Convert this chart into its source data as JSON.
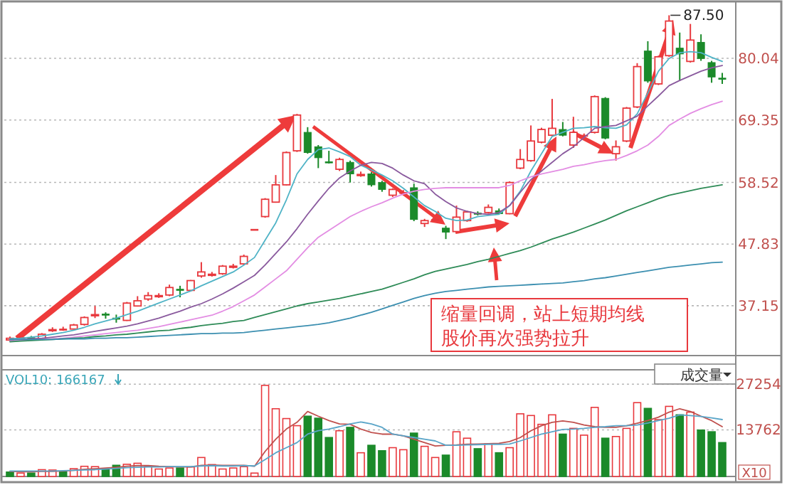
{
  "chart_data": [
    {
      "type": "candlestick",
      "tick_labels": "y",
      "grid": "y",
      "ylim": [
        28.5,
        89.9
      ],
      "yticks": [
        37.15,
        47.83,
        58.52,
        69.35,
        80.04
      ],
      "categories": [
        null,
        null,
        null,
        null,
        null,
        null,
        null,
        null,
        null,
        null,
        null,
        null,
        null,
        null,
        null,
        null,
        null,
        null,
        null,
        null,
        null,
        null,
        null,
        null,
        null,
        null,
        null,
        null,
        null,
        null,
        null,
        null,
        null,
        null,
        null,
        null,
        null,
        null,
        null,
        null,
        null,
        null,
        null,
        null,
        null,
        null,
        null,
        null,
        null,
        null,
        null,
        null,
        null,
        null,
        null,
        null,
        null,
        null,
        null,
        null,
        null,
        null,
        null,
        null,
        null,
        null,
        null,
        null
      ],
      "ohlc": [
        [
          31.2,
          31.8,
          31.0,
          31.5
        ],
        [
          31.3,
          31.8,
          31.1,
          31.6
        ],
        [
          31.6,
          31.9,
          31.2,
          31.4
        ],
        [
          31.4,
          32.4,
          31.3,
          32.2
        ],
        [
          32.9,
          33.4,
          32.6,
          33.0
        ],
        [
          33.1,
          33.5,
          32.8,
          33.1
        ],
        [
          33.1,
          34.0,
          33.0,
          33.8
        ],
        [
          33.9,
          35.3,
          33.7,
          35.1
        ],
        [
          35.5,
          37.1,
          35.0,
          35.6
        ],
        [
          35.7,
          36.0,
          34.9,
          35.6
        ],
        [
          35.0,
          35.6,
          34.2,
          34.8
        ],
        [
          34.6,
          37.8,
          34.5,
          37.6
        ],
        [
          37.1,
          38.8,
          37.0,
          38.0
        ],
        [
          38.3,
          39.5,
          38.0,
          38.9
        ],
        [
          38.8,
          39.3,
          38.5,
          38.9
        ],
        [
          39.0,
          40.8,
          38.8,
          40.3
        ],
        [
          40.0,
          40.6,
          38.6,
          39.9
        ],
        [
          39.8,
          41.6,
          39.6,
          41.5
        ],
        [
          42.3,
          44.7,
          42.0,
          43.0
        ],
        [
          42.5,
          43.0,
          42.2,
          42.6
        ],
        [
          42.7,
          44.2,
          42.5,
          44.0
        ],
        [
          43.9,
          44.4,
          43.6,
          44.0
        ],
        [
          44.4,
          46.0,
          44.2,
          45.7
        ],
        [
          50.4,
          50.4,
          50.4,
          50.4
        ],
        [
          52.6,
          55.8,
          52.4,
          55.6
        ],
        [
          55.1,
          59.8,
          55.0,
          58.1
        ],
        [
          58.1,
          63.9,
          58.0,
          63.7
        ],
        [
          64.0,
          70.4,
          63.8,
          70.2
        ],
        [
          67.2,
          68.1,
          63.5,
          63.7
        ],
        [
          64.7,
          65.0,
          61.0,
          62.8
        ],
        [
          62.1,
          64.0,
          61.8,
          62.0
        ],
        [
          60.8,
          62.8,
          60.5,
          62.5
        ],
        [
          62.0,
          62.3,
          58.5,
          60.0
        ],
        [
          59.8,
          60.4,
          59.5,
          59.9
        ],
        [
          60.0,
          60.3,
          57.8,
          58.1
        ],
        [
          58.5,
          58.8,
          56.9,
          57.3
        ],
        [
          56.3,
          57.5,
          56.0,
          57.3
        ],
        [
          56.8,
          57.2,
          56.3,
          56.8
        ],
        [
          57.6,
          58.3,
          51.8,
          52.1
        ],
        [
          51.4,
          52.2,
          50.8,
          51.9
        ],
        [
          52.1,
          52.4,
          51.8,
          52.1
        ],
        [
          50.6,
          51.0,
          48.7,
          49.9
        ],
        [
          50.0,
          54.5,
          49.8,
          52.5
        ],
        [
          51.9,
          53.6,
          51.7,
          53.4
        ],
        [
          53.2,
          53.5,
          52.8,
          53.1
        ],
        [
          53.3,
          54.7,
          53.1,
          54.2
        ],
        [
          53.6,
          54.0,
          53.0,
          53.1
        ],
        [
          53.1,
          58.7,
          53.0,
          58.5
        ],
        [
          61.0,
          64.3,
          60.8,
          62.5
        ],
        [
          62.3,
          68.4,
          62.1,
          65.7
        ],
        [
          65.5,
          68.0,
          65.3,
          67.7
        ],
        [
          66.7,
          73.0,
          66.5,
          67.9
        ],
        [
          67.7,
          69.0,
          66.5,
          66.7
        ],
        [
          65.0,
          69.9,
          64.5,
          67.2
        ],
        [
          66.7,
          67.0,
          66.3,
          66.7
        ],
        [
          67.2,
          73.6,
          67.0,
          73.4
        ],
        [
          73.1,
          73.3,
          66.0,
          66.2
        ],
        [
          63.5,
          65.8,
          62.3,
          64.7
        ],
        [
          65.7,
          71.6,
          65.5,
          71.4
        ],
        [
          71.6,
          79.2,
          71.4,
          78.6
        ],
        [
          81.3,
          83.0,
          75.8,
          76.1
        ],
        [
          75.6,
          80.5,
          75.4,
          80.3
        ],
        [
          80.5,
          87.5,
          80.3,
          86.5
        ],
        [
          81.8,
          84.5,
          76.1,
          80.8
        ],
        [
          79.5,
          86.0,
          79.3,
          83.2
        ],
        [
          82.8,
          84.2,
          79.6,
          80.0
        ],
        [
          79.3,
          79.6,
          75.8,
          76.8
        ],
        [
          76.6,
          77.5,
          75.6,
          76.6
        ]
      ],
      "colors": [
        "#e8383d",
        "#e8383d",
        "#1b8a2a",
        "#e8383d",
        "#e8383d",
        "#e8383d",
        "#e8383d",
        "#e8383d",
        "#e8383d",
        "#1b8a2a",
        "#1b8a2a",
        "#e8383d",
        "#e8383d",
        "#e8383d",
        "#e8383d",
        "#e8383d",
        "#1b8a2a",
        "#e8383d",
        "#e8383d",
        "#e8383d",
        "#e8383d",
        "#e8383d",
        "#e8383d",
        "#e8383d",
        "#e8383d",
        "#e8383d",
        "#e8383d",
        "#e8383d",
        "#1b8a2a",
        "#1b8a2a",
        "#1b8a2a",
        "#e8383d",
        "#1b8a2a",
        "#e8383d",
        "#1b8a2a",
        "#1b8a2a",
        "#e8383d",
        "#e8383d",
        "#1b8a2a",
        "#e8383d",
        "#e8383d",
        "#1b8a2a",
        "#e8383d",
        "#e8383d",
        "#1b8a2a",
        "#e8383d",
        "#1b8a2a",
        "#e8383d",
        "#e8383d",
        "#e8383d",
        "#e8383d",
        "#e8383d",
        "#1b8a2a",
        "#e8383d",
        "#e8383d",
        "#e8383d",
        "#1b8a2a",
        "#e8383d",
        "#e8383d",
        "#e8383d",
        "#1b8a2a",
        "#e8383d",
        "#e8383d",
        "#1b8a2a",
        "#e8383d",
        "#1b8a2a",
        "#1b8a2a",
        "#1b8a2a"
      ],
      "series": [
        {
          "type": "line",
          "color": "#4fb3c6",
          "values": [
            31.4,
            31.5,
            31.7,
            31.9,
            32.2,
            32.5,
            32.9,
            33.4,
            34.0,
            34.5,
            35.0,
            35.6,
            36.2,
            36.9,
            37.6,
            38.3,
            39.0,
            39.7,
            40.6,
            41.4,
            42.2,
            43.0,
            44.2,
            45.5,
            48.5,
            51.5,
            55.5,
            60.0,
            62.5,
            64.2,
            64.5,
            63.8,
            63.0,
            61.5,
            60.7,
            59.8,
            58.8,
            57.5,
            56.0,
            54.5,
            53.5,
            52.3,
            51.9,
            52.0,
            52.6,
            52.8,
            53.0,
            54.5,
            57.0,
            60.5,
            63.5,
            66.5,
            67.2,
            67.9,
            68.0,
            68.2,
            68.0,
            67.9,
            68.5,
            70.4,
            74.0,
            77.8,
            80.0,
            81.0,
            81.2,
            81.0,
            80.2,
            79.5
          ]
        },
        {
          "type": "line",
          "color": "#8a5a9e",
          "values": [
            31.2,
            31.3,
            31.4,
            31.5,
            31.7,
            31.9,
            32.1,
            32.4,
            32.7,
            33.0,
            33.3,
            33.6,
            34.0,
            34.5,
            35.0,
            35.6,
            36.2,
            36.9,
            37.5,
            38.3,
            39.2,
            40.2,
            41.3,
            42.4,
            44.2,
            46.2,
            48.2,
            50.5,
            53.0,
            55.3,
            57.5,
            59.3,
            60.5,
            61.5,
            62.0,
            61.8,
            61.0,
            59.8,
            58.8,
            58.3,
            56.5,
            55.2,
            54.1,
            53.5,
            53.1,
            53.0,
            53.3,
            54.5,
            56.8,
            59.0,
            60.5,
            62.0,
            63.5,
            64.7,
            66.3,
            67.9,
            68.2,
            68.4,
            69.2,
            70.0,
            71.8,
            73.5,
            75.3,
            76.2,
            77.0,
            77.8,
            78.4,
            78.8
          ]
        },
        {
          "type": "line",
          "color": "#e38de3",
          "values": [
            31.0,
            31.1,
            31.2,
            31.3,
            31.4,
            31.5,
            31.7,
            31.9,
            32.1,
            32.3,
            32.5,
            32.7,
            32.9,
            33.2,
            33.5,
            33.9,
            34.3,
            34.7,
            35.1,
            35.5,
            36.2,
            37.0,
            38.0,
            39.0,
            40.4,
            41.8,
            43.2,
            45.2,
            47.2,
            49.0,
            50.2,
            51.4,
            52.6,
            53.5,
            54.3,
            55.0,
            55.8,
            56.5,
            57.0,
            57.3,
            57.5,
            57.6,
            57.6,
            57.6,
            57.6,
            57.6,
            57.6,
            58.0,
            58.8,
            59.5,
            60.0,
            60.4,
            60.8,
            61.3,
            61.6,
            62.0,
            62.3,
            62.5,
            63.2,
            64.0,
            65.0,
            66.5,
            68.4,
            69.5,
            70.5,
            71.3,
            72.0,
            72.6
          ]
        },
        {
          "type": "line",
          "color": "#2e8b57",
          "values": [
            30.9,
            31.0,
            31.1,
            31.2,
            31.3,
            31.4,
            31.5,
            31.6,
            31.8,
            31.9,
            32.1,
            32.2,
            32.4,
            32.6,
            32.8,
            32.9,
            33.2,
            33.4,
            33.7,
            33.9,
            34.1,
            34.4,
            34.6,
            35.1,
            35.6,
            36.1,
            36.6,
            37.1,
            37.5,
            37.8,
            38.1,
            38.4,
            38.8,
            39.2,
            39.6,
            40.0,
            40.6,
            41.2,
            41.8,
            42.5,
            43.1,
            43.5,
            43.9,
            44.3,
            44.8,
            45.2,
            45.7,
            46.2,
            46.7,
            47.3,
            48.0,
            48.7,
            49.3,
            49.9,
            50.6,
            51.3,
            52.0,
            52.8,
            53.6,
            54.3,
            55.0,
            55.7,
            56.3,
            56.7,
            57.1,
            57.5,
            57.8,
            58.1
          ]
        },
        {
          "type": "line",
          "color": "#3c8fb0",
          "values": [
            31.3,
            31.3,
            31.3,
            31.3,
            31.3,
            31.4,
            31.4,
            31.4,
            31.5,
            31.5,
            31.6,
            31.6,
            31.7,
            31.8,
            31.9,
            32.0,
            32.1,
            32.2,
            32.3,
            32.3,
            32.4,
            32.4,
            32.5,
            32.7,
            32.9,
            33.1,
            33.3,
            33.5,
            33.7,
            33.9,
            34.2,
            34.6,
            35.0,
            35.5,
            36.0,
            36.6,
            37.2,
            37.8,
            38.4,
            38.9,
            39.3,
            39.6,
            39.8,
            40.0,
            40.2,
            40.4,
            40.5,
            40.6,
            40.7,
            40.8,
            40.9,
            41.0,
            41.1,
            41.3,
            41.5,
            41.8,
            42.0,
            42.3,
            42.6,
            42.9,
            43.2,
            43.5,
            43.8,
            44.0,
            44.2,
            44.4,
            44.6,
            44.7
          ]
        }
      ],
      "annotations": [
        "87.50",
        "缩量回调，站上短期均线",
        "股价再次强势拉升"
      ]
    },
    {
      "type": "bar",
      "tick_labels": "y",
      "grid": "y",
      "ylim": [
        0,
        31500
      ],
      "yticks": [
        13762,
        27254
      ],
      "categories": [
        null,
        null,
        null,
        null,
        null,
        null,
        null,
        null,
        null,
        null,
        null,
        null,
        null,
        null,
        null,
        null,
        null,
        null,
        null,
        null,
        null,
        null,
        null,
        null,
        null,
        null,
        null,
        null,
        null,
        null,
        null,
        null,
        null,
        null,
        null,
        null,
        null,
        null,
        null,
        null,
        null,
        null,
        null,
        null,
        null,
        null,
        null,
        null,
        null,
        null,
        null,
        null,
        null,
        null,
        null,
        null,
        null,
        null,
        null,
        null,
        null,
        null,
        null,
        null,
        null,
        null,
        null,
        null
      ],
      "series": [
        {
          "colors": [
            "#1b8a2a",
            "#e8383d",
            "#1b8a2a",
            "#e8383d",
            "#e8383d",
            "#1b8a2a",
            "#e8383d",
            "#e8383d",
            "#e8383d",
            "#1b8a2a",
            "#1b8a2a",
            "#e8383d",
            "#e8383d",
            "#e8383d",
            "#e8383d",
            "#e8383d",
            "#1b8a2a",
            "#e8383d",
            "#e8383d",
            "#e8383d",
            "#e8383d",
            "#e8383d",
            "#e8383d",
            "#e8383d",
            "#e8383d",
            "#e8383d",
            "#e8383d",
            "#e8383d",
            "#1b8a2a",
            "#1b8a2a",
            "#1b8a2a",
            "#e8383d",
            "#1b8a2a",
            "#e8383d",
            "#1b8a2a",
            "#1b8a2a",
            "#e8383d",
            "#e8383d",
            "#1b8a2a",
            "#e8383d",
            "#e8383d",
            "#1b8a2a",
            "#e8383d",
            "#e8383d",
            "#1b8a2a",
            "#e8383d",
            "#1b8a2a",
            "#e8383d",
            "#e8383d",
            "#e8383d",
            "#e8383d",
            "#e8383d",
            "#1b8a2a",
            "#e8383d",
            "#e8383d",
            "#e8383d",
            "#1b8a2a",
            "#e8383d",
            "#e8383d",
            "#e8383d",
            "#1b8a2a",
            "#e8383d",
            "#e8383d",
            "#1b8a2a",
            "#e8383d",
            "#1b8a2a",
            "#1b8a2a",
            "#1b8a2a"
          ],
          "values": [
            1300,
            1000,
            1000,
            2000,
            1900,
            1400,
            2300,
            3000,
            2900,
            2300,
            3300,
            3600,
            3900,
            3000,
            2200,
            2500,
            2500,
            2800,
            5600,
            3500,
            2200,
            2500,
            2900,
            1000,
            26900,
            20000,
            17100,
            15000,
            17800,
            17200,
            11500,
            13500,
            14500,
            7000,
            9200,
            7600,
            8500,
            7900,
            12800,
            8900,
            5600,
            6300,
            13200,
            11300,
            8200,
            9600,
            7000,
            8500,
            18500,
            18000,
            15400,
            18200,
            12500,
            14200,
            12200,
            20400,
            11300,
            11800,
            14200,
            21800,
            20100,
            16800,
            20700,
            18200,
            19000,
            13700,
            13200,
            10000
          ]
        },
        {
          "type": "line",
          "color": "#c0504d",
          "values": [
            1500,
            1400,
            1400,
            1500,
            1500,
            1600,
            1800,
            2100,
            2300,
            2500,
            2700,
            3000,
            3200,
            3200,
            3000,
            2900,
            2800,
            2800,
            3300,
            3400,
            3300,
            3300,
            3300,
            3000,
            7400,
            11000,
            14000,
            16000,
            19200,
            17800,
            16500,
            15500,
            15400,
            14000,
            13000,
            12500,
            12500,
            12000,
            11000,
            10000,
            9000,
            9200,
            9300,
            9500,
            9600,
            9700,
            9800,
            10300,
            11500,
            13500,
            15000,
            16000,
            16400,
            16000,
            15200,
            14700,
            14500,
            14500,
            15000,
            15700,
            16500,
            17500,
            19000,
            20000,
            19200,
            17800,
            16500,
            14700
          ]
        },
        {
          "type": "line",
          "color": "#5aa5c8",
          "values": [
            1600,
            1600,
            1600,
            1600,
            1600,
            1700,
            1800,
            1900,
            2000,
            2200,
            2400,
            2600,
            2700,
            2800,
            2800,
            2900,
            2900,
            2900,
            3100,
            3200,
            3100,
            3100,
            3200,
            3100,
            5000,
            7000,
            8500,
            10000,
            12500,
            13500,
            14000,
            14700,
            15500,
            16100,
            15500,
            14500,
            12500,
            12000,
            11500,
            11000,
            10500,
            9200,
            9200,
            9300,
            9400,
            9500,
            9500,
            9600,
            10500,
            11500,
            12500,
            13200,
            13900,
            14000,
            14200,
            14500,
            14700,
            15000,
            15000,
            15200,
            15800,
            16500,
            17200,
            18200,
            18000,
            17700,
            17300,
            16800
          ]
        }
      ],
      "annotations": [
        "VOL10: 166167",
        "成交量",
        "X10"
      ]
    }
  ]
}
